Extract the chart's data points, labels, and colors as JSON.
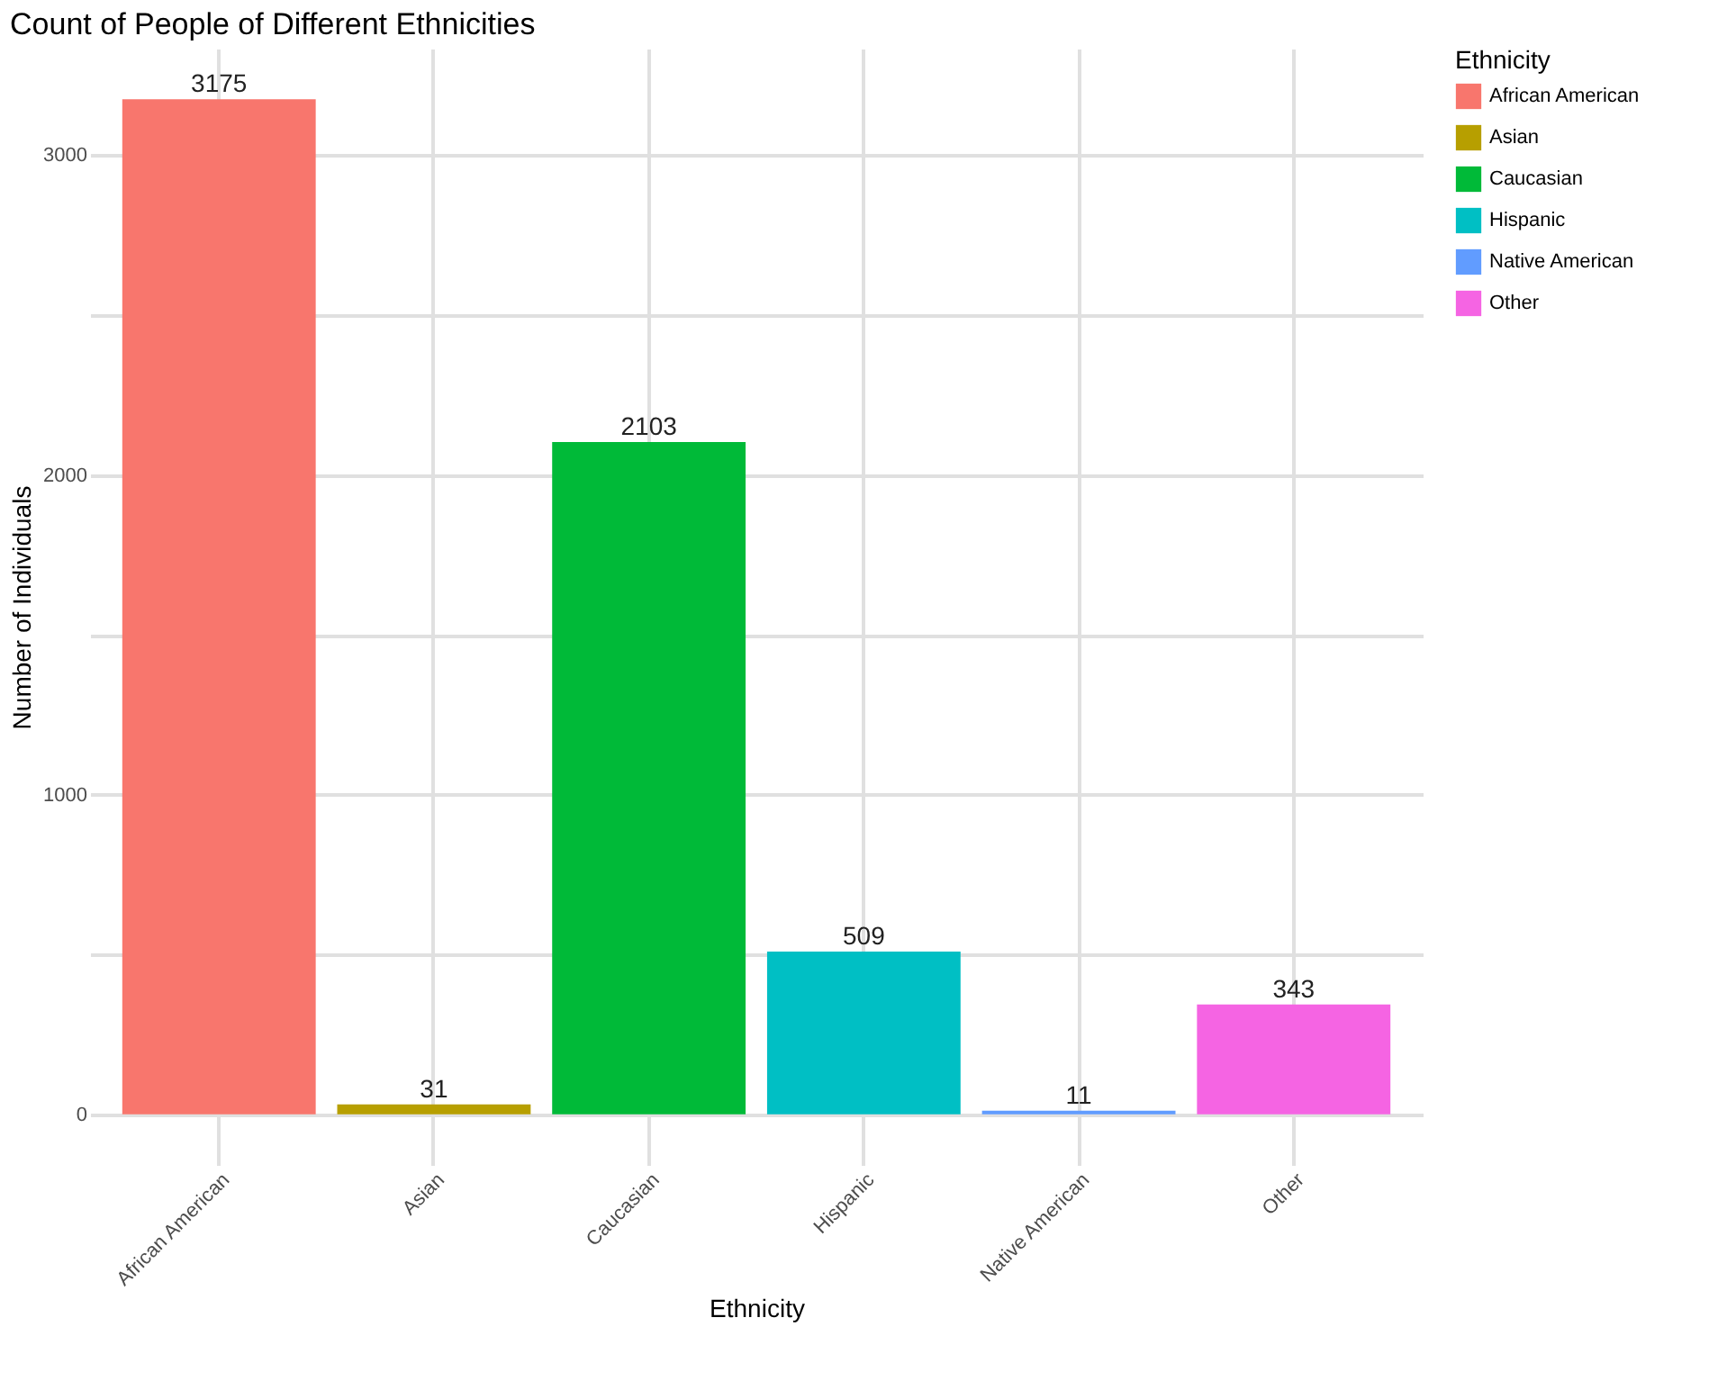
{
  "chart_data": {
    "type": "bar",
    "title": "Count of People of Different Ethnicities",
    "xlabel": "Ethnicity",
    "ylabel": "Number of Individuals",
    "legend_title": "Ethnicity",
    "categories": [
      "African American",
      "Asian",
      "Caucasian",
      "Hispanic",
      "Native American",
      "Other"
    ],
    "series": [
      {
        "name": "African American",
        "color": "#f8766d",
        "values": [
          3175,
          null,
          null,
          null,
          null,
          null
        ]
      },
      {
        "name": "Asian",
        "color": "#b79f00",
        "values": [
          null,
          31,
          null,
          null,
          null,
          null
        ]
      },
      {
        "name": "Caucasian",
        "color": "#00ba38",
        "values": [
          null,
          null,
          2103,
          null,
          null,
          null
        ]
      },
      {
        "name": "Hispanic",
        "color": "#00bfc4",
        "values": [
          null,
          null,
          null,
          509,
          null,
          null
        ]
      },
      {
        "name": "Native American",
        "color": "#619cff",
        "values": [
          null,
          null,
          null,
          null,
          11,
          null
        ]
      },
      {
        "name": "Other",
        "color": "#f564e3",
        "values": [
          null,
          null,
          null,
          null,
          null,
          343
        ]
      }
    ],
    "ylim": [
      -158.75,
      3333.75
    ],
    "yticks": [
      0,
      {
        "value": 500,
        "label": null
      },
      1000,
      {
        "value": 1500,
        "label": null
      },
      2000,
      {
        "value": 2500,
        "label": null
      },
      3000
    ],
    "grid": true,
    "legend": "right",
    "data_labels": true
  }
}
